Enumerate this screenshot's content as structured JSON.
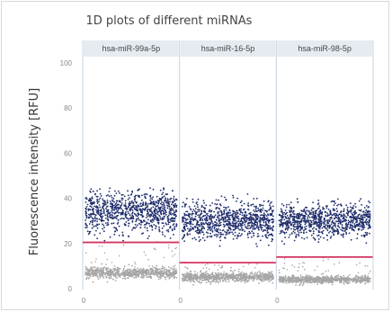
{
  "chart_data": {
    "type": "scatter",
    "title": "1D plots of different miRNAs",
    "ylabel": "Fluorescence intensity [RFU]",
    "xlabel": "",
    "ylim": [
      0,
      100
    ],
    "y_ticks": [
      "0",
      "20",
      "40",
      "60",
      "80",
      "100"
    ],
    "x_tick_label": "0",
    "grid": false,
    "panels": [
      {
        "name": "hsa-miR-99a-5p",
        "threshold": 20.5,
        "positive_cluster": {
          "center": 34,
          "spread": 4.5,
          "min": 21,
          "max": 45
        },
        "negative_cluster": {
          "center": 7,
          "spread": 1.2
        },
        "rain_range": [
          9,
          21
        ]
      },
      {
        "name": "hsa-miR-16-5p",
        "threshold": 11.5,
        "positive_cluster": {
          "center": 30,
          "spread": 4.0,
          "min": 12,
          "max": 42
        },
        "negative_cluster": {
          "center": 5,
          "spread": 1.0
        },
        "rain_range": [
          7,
          12
        ]
      },
      {
        "name": "hsa-miR-98-5p",
        "threshold": 14,
        "positive_cluster": {
          "center": 30,
          "spread": 3.5,
          "min": 15,
          "max": 40
        },
        "negative_cluster": {
          "center": 4,
          "spread": 0.8
        },
        "rain_range": [
          6,
          14
        ]
      }
    ],
    "colors": {
      "positive": "#1f2d6b",
      "negative": "#a6a6a6",
      "threshold": "#d4345f",
      "panel_header": "#e6ebf1",
      "divider": "#c5d3e0"
    }
  }
}
